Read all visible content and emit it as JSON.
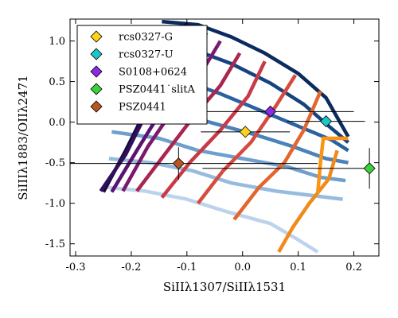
{
  "chart_data": {
    "type": "scatter",
    "xlabel": "SiIIλ1307/SiIIλ1531",
    "ylabel": "SiIIIλ1883/OIIλ2471",
    "xlim": [
      -0.31,
      0.245
    ],
    "ylim": [
      -1.65,
      1.27
    ],
    "xticks": [
      "-0.3",
      "-0.2",
      "-0.1",
      "0.0",
      "0.1",
      "0.2"
    ],
    "yticks": [
      "1.0",
      "0.5",
      "0.0",
      "-0.5",
      "-1.0",
      "-1.5"
    ],
    "legend_position": "upper-left",
    "grid": false,
    "model_grid": {
      "vertical_lines": [
        {
          "color": "#1a0b3a",
          "points": [
            [
              -0.25,
              -0.86
            ],
            [
              -0.21,
              -0.35
            ],
            [
              -0.17,
              0.2
            ],
            [
              -0.135,
              0.75
            ],
            [
              -0.1,
              1.22
            ]
          ]
        },
        {
          "color": "#2f0f5e",
          "points": [
            [
              -0.255,
              -0.85
            ],
            [
              -0.21,
              -0.4
            ],
            [
              -0.17,
              0.15
            ],
            [
              -0.13,
              0.7
            ],
            [
              -0.095,
              1.2
            ]
          ]
        },
        {
          "color": "#5a1370",
          "points": [
            [
              -0.235,
              -0.86
            ],
            [
              -0.19,
              -0.35
            ],
            [
              -0.145,
              0.15
            ],
            [
              -0.1,
              0.62
            ],
            [
              -0.065,
              1.1
            ]
          ]
        },
        {
          "color": "#7b1a6c",
          "points": [
            [
              -0.215,
              -0.85
            ],
            [
              -0.17,
              -0.3
            ],
            [
              -0.12,
              0.2
            ],
            [
              -0.075,
              0.6
            ],
            [
              -0.04,
              1.0
            ]
          ]
        },
        {
          "color": "#a8264f",
          "points": [
            [
              -0.19,
              -0.85
            ],
            [
              -0.14,
              -0.4
            ],
            [
              -0.09,
              0.05
            ],
            [
              -0.04,
              0.45
            ],
            [
              -0.005,
              0.85
            ]
          ]
        },
        {
          "color": "#c73a47",
          "points": [
            [
              -0.145,
              -0.93
            ],
            [
              -0.095,
              -0.5
            ],
            [
              -0.04,
              -0.1
            ],
            [
              0.01,
              0.32
            ],
            [
              0.04,
              0.75
            ]
          ]
        },
        {
          "color": "#d64b3f",
          "points": [
            [
              -0.08,
              -1.0
            ],
            [
              -0.035,
              -0.6
            ],
            [
              0.015,
              -0.25
            ],
            [
              0.06,
              0.2
            ],
            [
              0.095,
              0.58
            ]
          ]
        },
        {
          "color": "#e2662e",
          "points": [
            [
              -0.015,
              -1.2
            ],
            [
              0.03,
              -0.8
            ],
            [
              0.075,
              -0.5
            ],
            [
              0.11,
              -0.1
            ],
            [
              0.14,
              0.38
            ]
          ]
        },
        {
          "color": "#f08a1a",
          "points": [
            [
              0.065,
              -1.6
            ],
            [
              0.09,
              -1.3
            ],
            [
              0.12,
              -1.0
            ],
            [
              0.155,
              -0.7
            ],
            [
              0.17,
              -0.35
            ]
          ]
        },
        {
          "color": "#fb9414",
          "points": [
            [
              0.135,
              -0.88
            ],
            [
              0.14,
              -0.5
            ],
            [
              0.145,
              -0.2
            ],
            [
              0.19,
              -0.2
            ]
          ]
        }
      ],
      "curved_lines": [
        {
          "color": "#0b2a5e",
          "points": [
            [
              -0.145,
              1.24
            ],
            [
              -0.08,
              1.2
            ],
            [
              -0.02,
              1.05
            ],
            [
              0.04,
              0.85
            ],
            [
              0.1,
              0.6
            ],
            [
              0.15,
              0.3
            ],
            [
              0.19,
              -0.18
            ]
          ]
        },
        {
          "color": "#15437f",
          "points": [
            [
              -0.17,
              0.95
            ],
            [
              -0.09,
              0.9
            ],
            [
              -0.02,
              0.72
            ],
            [
              0.05,
              0.48
            ],
            [
              0.11,
              0.22
            ],
            [
              0.155,
              -0.05
            ],
            [
              0.19,
              -0.25
            ]
          ]
        },
        {
          "color": "#2a62a0",
          "points": [
            [
              -0.19,
              0.6
            ],
            [
              -0.11,
              0.52
            ],
            [
              -0.04,
              0.35
            ],
            [
              0.03,
              0.15
            ],
            [
              0.1,
              -0.05
            ],
            [
              0.16,
              -0.22
            ],
            [
              0.19,
              -0.35
            ]
          ]
        },
        {
          "color": "#4a82ba",
          "points": [
            [
              -0.21,
              0.25
            ],
            [
              -0.13,
              0.17
            ],
            [
              -0.06,
              0.0
            ],
            [
              0.02,
              -0.15
            ],
            [
              0.09,
              -0.3
            ],
            [
              0.15,
              -0.45
            ],
            [
              0.19,
              -0.5
            ]
          ]
        },
        {
          "color": "#6f9fcd",
          "points": [
            [
              -0.235,
              -0.12
            ],
            [
              -0.15,
              -0.2
            ],
            [
              -0.08,
              -0.35
            ],
            [
              0.0,
              -0.45
            ],
            [
              0.08,
              -0.55
            ],
            [
              0.14,
              -0.68
            ],
            [
              0.185,
              -0.72
            ]
          ]
        },
        {
          "color": "#97bbdf",
          "points": [
            [
              -0.24,
              -0.45
            ],
            [
              -0.165,
              -0.5
            ],
            [
              -0.09,
              -0.6
            ],
            [
              -0.02,
              -0.75
            ],
            [
              0.06,
              -0.85
            ],
            [
              0.12,
              -0.9
            ],
            [
              0.18,
              -0.95
            ]
          ]
        },
        {
          "color": "#bcd3ec",
          "points": [
            [
              -0.25,
              -0.8
            ],
            [
              -0.175,
              -0.85
            ],
            [
              -0.1,
              -0.95
            ],
            [
              -0.03,
              -1.1
            ],
            [
              0.05,
              -1.25
            ],
            [
              0.1,
              -1.45
            ],
            [
              0.135,
              -1.6
            ]
          ]
        }
      ]
    },
    "series": [
      {
        "name": "rcs0327-G",
        "color": "#ffd11a",
        "x": 0.005,
        "y": -0.12,
        "xerr": [
          0.08,
          0.08
        ],
        "yerr": [
          0.0,
          0.0
        ]
      },
      {
        "name": "rcs0327-U",
        "color": "#1cc7c7",
        "x": 0.15,
        "y": 0.01,
        "xerr": [
          0.07,
          0.07
        ],
        "yerr": [
          0.0,
          0.0
        ]
      },
      {
        "name": "S0108+0624",
        "color": "#8a2be2",
        "x": 0.05,
        "y": 0.13,
        "xerr": [
          0.15,
          0.15
        ],
        "yerr": [
          0.0,
          0.0
        ]
      },
      {
        "name": "PSZ0441˙slitA",
        "color": "#3bd13b",
        "x": 0.228,
        "y": -0.57,
        "xerr": [
          0.3,
          0.0
        ],
        "yerr": [
          0.25,
          0.25
        ]
      },
      {
        "name": "PSZ0441",
        "color": "#b8561e",
        "x": -0.115,
        "y": -0.51,
        "xerr": [
          0.29,
          0.25
        ],
        "yerr": [
          0.2,
          0.2
        ]
      }
    ]
  }
}
